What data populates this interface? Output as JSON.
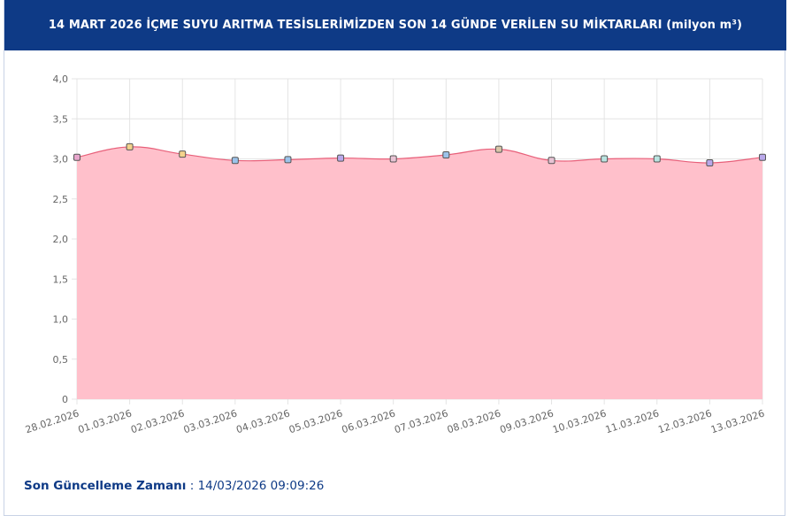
{
  "header": {
    "title": "14 MART 2026 İÇME SUYU ARITMA TESİSLERİMİZDEN SON 14 GÜNDE VERİLEN SU MİKTARLARI (milyon m³)"
  },
  "footer": {
    "label": "Son Güncelleme Zamanı",
    "separator": " : ",
    "value": "14/03/2026 09:09:26"
  },
  "chart_data": {
    "type": "area",
    "categories": [
      "28.02.2026",
      "01.03.2026",
      "02.03.2026",
      "03.03.2026",
      "04.03.2026",
      "05.03.2026",
      "06.03.2026",
      "07.03.2026",
      "08.03.2026",
      "09.03.2026",
      "10.03.2026",
      "11.03.2026",
      "12.03.2026",
      "13.03.2026"
    ],
    "series": [
      {
        "values": [
          3.02,
          3.15,
          3.06,
          2.98,
          2.99,
          3.01,
          3.0,
          3.05,
          3.12,
          2.98,
          3.0,
          3.0,
          2.95,
          3.02
        ]
      }
    ],
    "ylim": [
      0,
      4
    ],
    "y_ticks": [
      "0",
      "0,5",
      "1,0",
      "1,5",
      "2,0",
      "2,5",
      "3,0",
      "3,5",
      "4,0"
    ],
    "y_tick_values": [
      0,
      0.5,
      1.0,
      1.5,
      2.0,
      2.5,
      3.0,
      3.5,
      4.0
    ],
    "grid": true,
    "colors": {
      "fill": "#ffc0cb",
      "line": "#e8607a",
      "grid": "#e4e4e4",
      "axis_text": "#666666",
      "point_colors": [
        "#e7a6cc",
        "#f3d38c",
        "#f3d38c",
        "#9cc3ea",
        "#9cc3ea",
        "#b9a8ea",
        "#e8c3d4",
        "#9cc3ea",
        "#d8c6a8",
        "#e8c3d4",
        "#b9e3e0",
        "#b9e3e0",
        "#b9a8ea",
        "#b9a8ea"
      ],
      "point_border": "#555555"
    }
  }
}
